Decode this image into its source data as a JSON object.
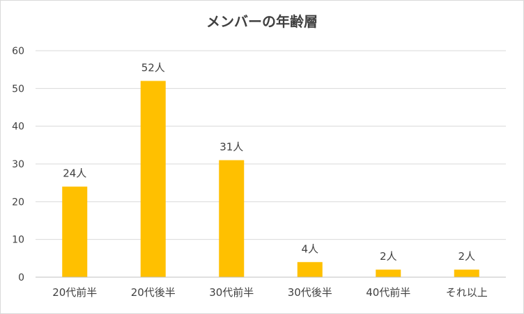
{
  "chart_data": {
    "type": "bar",
    "title": "メンバーの年齢層",
    "categories": [
      "20代前半",
      "20代後半",
      "30代前半",
      "30代後半",
      "40代前半",
      "それ以上"
    ],
    "values": [
      24,
      52,
      31,
      4,
      2,
      2
    ],
    "data_labels": [
      "24人",
      "52人",
      "31人",
      "4人",
      "2人",
      "2人"
    ],
    "xlabel": "",
    "ylabel": "",
    "ylim": [
      0,
      60
    ],
    "yticks": [
      0,
      10,
      20,
      30,
      40,
      50,
      60
    ],
    "grid": true,
    "legend": "none",
    "colors": {
      "bar": "#FFC000",
      "grid": "#d9d9d9",
      "axis": "#bfbfbf",
      "text": "#404040"
    }
  }
}
